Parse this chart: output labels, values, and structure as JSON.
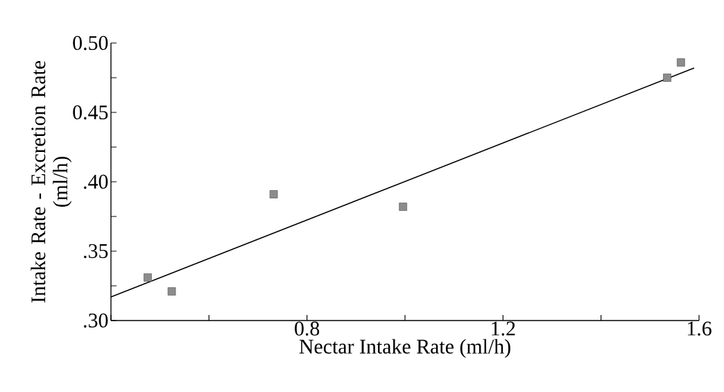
{
  "chart_data": {
    "type": "scatter",
    "xlabel": "Nectar Intake Rate (ml/h)",
    "ylabel": "Intake Rate - Excretion Rate\n(ml/h)",
    "series": [
      {
        "x": [
          0.475,
          0.524,
          0.732,
          0.996,
          1.535,
          1.563
        ],
        "values": [
          0.331,
          0.321,
          0.391,
          0.382,
          0.475,
          0.486
        ],
        "color": "#8c8c8c",
        "marker": "square"
      },
      {
        "type": "line",
        "x": [
          0.4,
          1.59
        ],
        "values": [
          0.317,
          0.482
        ],
        "color": "#000000",
        "marker": "none",
        "line_style": "solid"
      }
    ],
    "xlim": [
      0.4,
      1.6
    ],
    "ylim": [
      0.3,
      0.5
    ],
    "xticks": [
      {
        "value": 0.4,
        "label": null
      },
      {
        "value": 0.6,
        "label": null
      },
      0.8,
      {
        "value": 1.0,
        "label": null
      },
      1.2,
      {
        "value": 1.4,
        "label": null
      },
      1.6
    ],
    "yticks": [
      {
        "value": 0.3,
        "label": ".30"
      },
      {
        "value": 0.325,
        "label": null
      },
      {
        "value": 0.35,
        "label": ".35"
      },
      {
        "value": 0.375,
        "label": null
      },
      {
        "value": 0.4,
        "label": ".40"
      },
      {
        "value": 0.425,
        "label": null
      },
      {
        "value": 0.45,
        "label": "0.45"
      },
      {
        "value": 0.475,
        "label": null
      },
      {
        "value": 0.5,
        "label": "0.50"
      }
    ],
    "grid": false
  }
}
